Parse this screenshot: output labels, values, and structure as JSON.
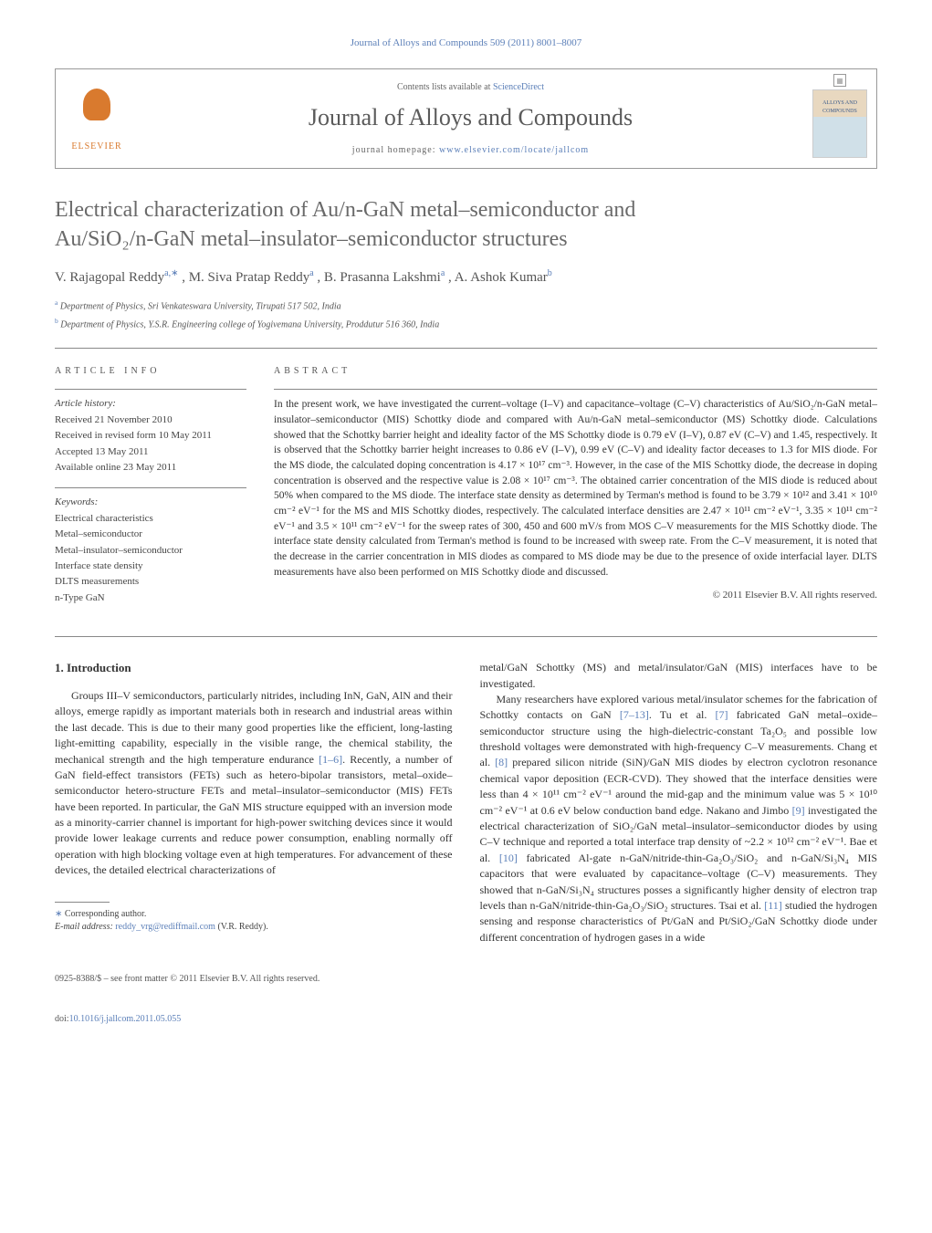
{
  "journal_ref": "Journal of Alloys and Compounds 509 (2011) 8001–8007",
  "header": {
    "contents_prefix": "Contents lists available at ",
    "contents_link": "ScienceDirect",
    "journal_title": "Journal of Alloys and Compounds",
    "homepage_prefix": "journal homepage: ",
    "homepage_link": "www.elsevier.com/locate/jallcom",
    "elsevier_label": "ELSEVIER",
    "cover_text": "ALLOYS\nAND COMPOUNDS"
  },
  "article": {
    "title_line1": "Electrical characterization of Au/n-GaN metal–semiconductor and",
    "title_line2": "Au/SiO₂/n-GaN metal–insulator–semiconductor structures",
    "authors_html": "V. Rajagopal Reddy",
    "author_sup1": "a,∗",
    "author2": ", M. Siva Pratap Reddy",
    "author_sup2": "a",
    "author3": ", B. Prasanna Lakshmi",
    "author_sup3": "a",
    "author4": ", A. Ashok Kumar",
    "author_sup4": "b",
    "affiliations": [
      {
        "label": "a",
        "text": " Department of Physics, Sri Venkateswara University, Tirupati 517 502, India"
      },
      {
        "label": "b",
        "text": " Department of Physics, Y.S.R. Engineering college of Yogivemana University, Proddutur 516 360, India"
      }
    ]
  },
  "info": {
    "heading": "ARTICLE INFO",
    "history_label": "Article history:",
    "history": [
      "Received 21 November 2010",
      "Received in revised form 10 May 2011",
      "Accepted 13 May 2011",
      "Available online 23 May 2011"
    ],
    "keywords_label": "Keywords:",
    "keywords": [
      "Electrical characteristics",
      "Metal–semiconductor",
      "Metal–insulator–semiconductor",
      "Interface state density",
      "DLTS measurements",
      "n-Type GaN"
    ]
  },
  "abstract": {
    "heading": "ABSTRACT",
    "text": "In the present work, we have investigated the current–voltage (I–V) and capacitance–voltage (C–V) characteristics of Au/SiO₂/n-GaN metal–insulator–semiconductor (MIS) Schottky diode and compared with Au/n-GaN metal–semiconductor (MS) Schottky diode. Calculations showed that the Schottky barrier height and ideality factor of the MS Schottky diode is 0.79 eV (I–V), 0.87 eV (C–V) and 1.45, respectively. It is observed that the Schottky barrier height increases to 0.86 eV (I–V), 0.99 eV (C–V) and ideality factor deceases to 1.3 for MIS diode. For the MS diode, the calculated doping concentration is 4.17 × 10¹⁷ cm⁻³. However, in the case of the MIS Schottky diode, the decrease in doping concentration is observed and the respective value is 2.08 × 10¹⁷ cm⁻³. The obtained carrier concentration of the MIS diode is reduced about 50% when compared to the MS diode. The interface state density as determined by Terman's method is found to be 3.79 × 10¹² and 3.41 × 10¹⁰ cm⁻² eV⁻¹ for the MS and MIS Schottky diodes, respectively. The calculated interface densities are 2.47 × 10¹¹ cm⁻² eV⁻¹, 3.35 × 10¹¹ cm⁻² eV⁻¹ and 3.5 × 10¹¹ cm⁻² eV⁻¹ for the sweep rates of 300, 450 and 600 mV/s from MOS C–V measurements for the MIS Schottky diode. The interface state density calculated from Terman's method is found to be increased with sweep rate. From the C–V measurement, it is noted that the decrease in the carrier concentration in MIS diodes as compared to MS diode may be due to the presence of oxide interfacial layer. DLTS measurements have also been performed on MIS Schottky diode and discussed.",
    "copyright": "© 2011 Elsevier B.V. All rights reserved."
  },
  "body": {
    "section_heading": "1. Introduction",
    "col1_p1": "Groups III–V semiconductors, particularly nitrides, including InN, GaN, AlN and their alloys, emerge rapidly as important materials both in research and industrial areas within the last decade. This is due to their many good properties like the efficient, long-lasting light-emitting capability, especially in the visible range, the chemical stability, the mechanical strength and the high temperature endurance ",
    "col1_ref1": "[1–6]",
    "col1_p1b": ". Recently, a number of GaN field-effect transistors (FETs) such as hetero-bipolar transistors, metal–oxide–semiconductor hetero-structure FETs and metal–insulator–semiconductor (MIS) FETs have been reported. In particular, the GaN MIS structure equipped with an inversion mode as a minority-carrier channel is important for high-power switching devices since it would provide lower leakage currents and reduce power consumption, enabling normally off operation with high blocking voltage even at high temperatures. For advancement of these devices, the detailed electrical characterizations of",
    "col2_p1": "metal/GaN Schottky (MS) and metal/insulator/GaN (MIS) interfaces have to be investigated.",
    "col2_p2a": "Many researchers have explored various metal/insulator schemes for the fabrication of Schottky contacts on GaN ",
    "col2_ref713": "[7–13]",
    "col2_p2b": ". Tu et al. ",
    "col2_ref7": "[7]",
    "col2_p2c": " fabricated GaN metal–oxide–semiconductor structure using the high-dielectric-constant Ta₂O₅ and possible low threshold voltages were demonstrated with high-frequency C–V measurements. Chang et al. ",
    "col2_ref8": "[8]",
    "col2_p2d": " prepared silicon nitride (SiN)/GaN MIS diodes by electron cyclotron resonance chemical vapor deposition (ECR-CVD). They showed that the interface densities were less than 4 × 10¹¹ cm⁻² eV⁻¹ around the mid-gap and the minimum value was 5 × 10¹⁰ cm⁻² eV⁻¹ at 0.6 eV below conduction band edge. Nakano and Jimbo ",
    "col2_ref9": "[9]",
    "col2_p2e": " investigated the electrical characterization of SiO₂/GaN metal–insulator–semiconductor diodes by using C–V technique and reported a total interface trap density of ~2.2 × 10¹² cm⁻² eV⁻¹. Bae et al. ",
    "col2_ref10": "[10]",
    "col2_p2f": " fabricated Al-gate n-GaN/nitride-thin-Ga₂O₃/SiO₂ and n-GaN/Si₃N₄ MIS capacitors that were evaluated by capacitance–voltage (C–V) measurements. They showed that n-GaN/Si₃N₄ structures posses a significantly higher density of electron trap levels than n-GaN/nitride-thin-Ga₂O₃/SiO₂ structures. Tsai et al. ",
    "col2_ref11": "[11]",
    "col2_p2g": " studied the hydrogen sensing and response characteristics of Pt/GaN and Pt/SiO₂/GaN Schottky diode under different concentration of hydrogen gases in a wide"
  },
  "footnote": {
    "corr_label": "∗",
    "corr_text": " Corresponding author.",
    "email_label": "E-mail address: ",
    "email": "reddy_vrg@rediffmail.com",
    "email_suffix": " (V.R. Reddy)."
  },
  "footer": {
    "issn": "0925-8388/$ – see front matter © 2011 Elsevier B.V. All rights reserved.",
    "doi_label": "doi:",
    "doi": "10.1016/j.jallcom.2011.05.055"
  },
  "colors": {
    "link": "#5b7fb8",
    "elsevier": "#d97a2e",
    "text": "#333333",
    "heading_gray": "#696969"
  }
}
